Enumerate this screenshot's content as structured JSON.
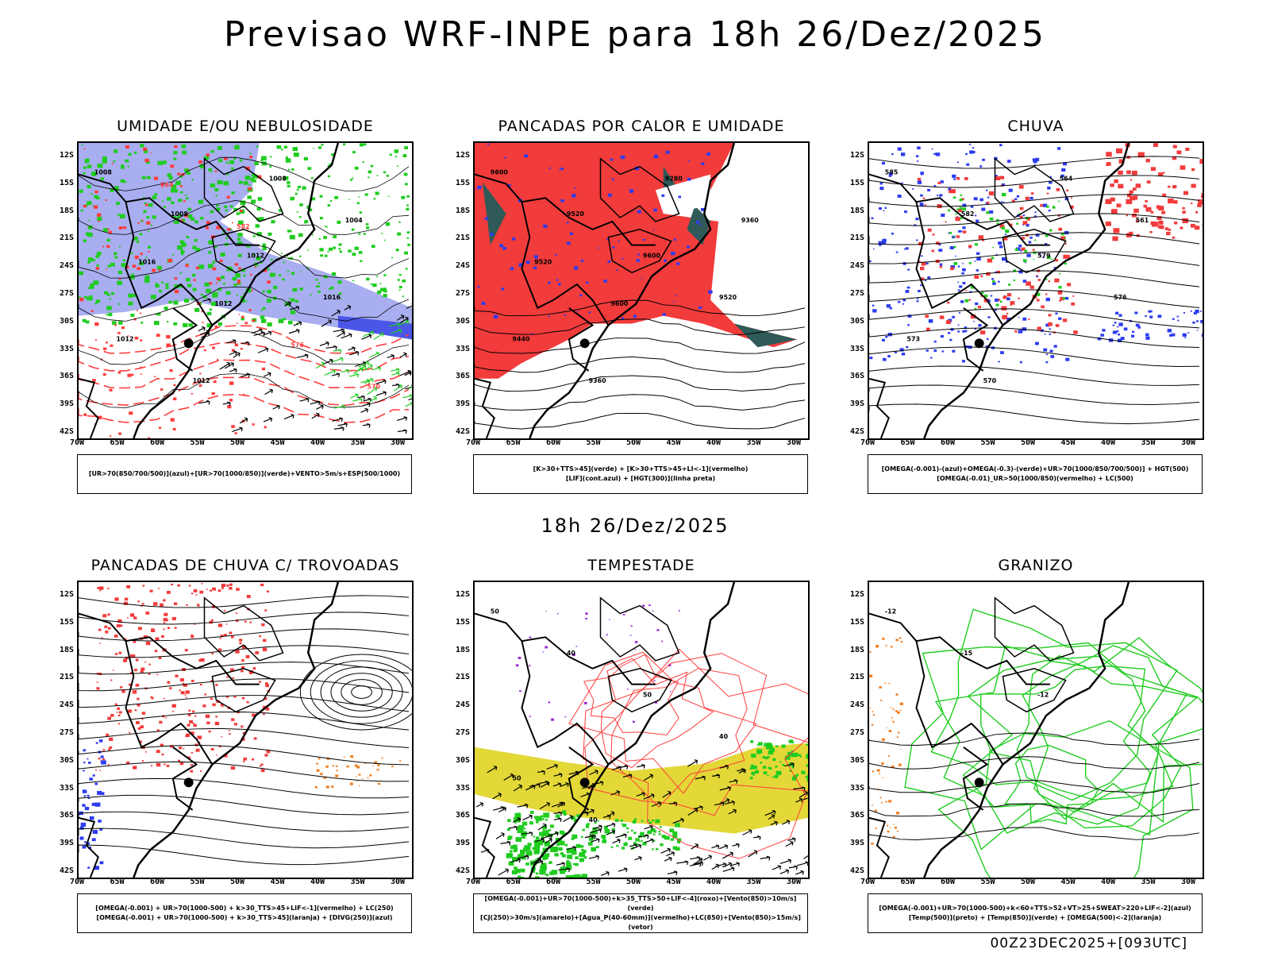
{
  "main_title": "Previsao WRF-INPE  para 18h 26/Dez/2025",
  "mid_title": "18h 26/Dez/2025",
  "footer": "00Z23DEC2025+[093UTC]",
  "axes": {
    "lat_labels": [
      "12S",
      "15S",
      "18S",
      "21S",
      "24S",
      "27S",
      "30S",
      "33S",
      "36S",
      "39S",
      "42S"
    ],
    "lon_labels": [
      "70W",
      "65W",
      "60W",
      "55W",
      "50W",
      "45W",
      "40W",
      "35W",
      "30W"
    ]
  },
  "colors": {
    "blue_shade": "#a9aef0",
    "green_contour": "#1fcc1f",
    "red_contour": "#ff3b3b",
    "red_shade": "#f23b3b",
    "dark_teal": "#2f5a57",
    "blue_contour": "#2c3cf0",
    "yellow_shade": "#e3d838",
    "orange": "#ef7f23",
    "purple": "#9b2bd6"
  },
  "panels": [
    {
      "id": "umidade",
      "title": "UMIDADE E/OU NEBULOSIDADE",
      "legend": [
        "[UR>70(850/700/500)](azul)+[UR>70(1000/850)](verde)+VENTO>5m/s+ESP(500/1000)"
      ],
      "contour_labels": [
        "1008",
        "1008",
        "1012",
        "1016",
        "1012",
        "1012",
        "1008",
        "1004",
        "1016",
        "1012",
        "576",
        "570",
        "564",
        "582"
      ]
    },
    {
      "id": "pancadas",
      "title": "PANCADAS POR CALOR E UMIDADE",
      "legend": [
        "[K>30+TTS>45](verde) + [K>30+TTS>45+LI<-1](vermelho)",
        "[LIF](cont.azul) + [HGT(300)](linha preta)"
      ],
      "contour_labels": [
        "9600",
        "9520",
        "9600",
        "9520",
        "9440",
        "9360",
        "9280",
        "9360",
        "9520",
        "9600"
      ]
    },
    {
      "id": "chuva",
      "title": "CHUVA",
      "legend": [
        "[OMEGA(-0.001)-(azul)+OMEGA(-0.3)-(verde)+UR>70(1000/850/700/500)] + HGT(500)",
        "[OMEGA(-0.01)_UR>50(1000/850)(vermelho) + LC(500)"
      ],
      "contour_labels": [
        "585",
        "582",
        "579",
        "576",
        "573",
        "570",
        "564",
        "561"
      ]
    },
    {
      "id": "trovoadas",
      "title": "PANCADAS DE CHUVA C/ TROVOADAS",
      "legend": [
        "[OMEGA(-0.001) + UR>70(1000-500) + k>30_TTS>45+LIF<-1](vermelho) + LC(250)",
        "[OMEGA(-0.001) + UR>70(1000-500) + k>30_TTS>45](laranja) + [DIVG(250)](azul)"
      ],
      "contour_labels": []
    },
    {
      "id": "tempestade",
      "title": "TEMPESTADE",
      "legend": [
        "[OMEGA(-0.001)+UR>70(1000-500)+k>35_TTS>50+LIF<-4](roxo)+[Vento(850)>10m/s](verde)",
        "[CJ(250)>30m/s](amarelo)+[Agua_P(40-60mm)](vermelho)+LC(850)+[Vento(850)>15m/s](vetor)"
      ],
      "contour_labels": [
        "50",
        "40",
        "50",
        "40",
        "50",
        "40"
      ]
    },
    {
      "id": "granizo",
      "title": "GRANIZO",
      "legend": [
        "[OMEGA(-0.001)+UR>70(1000-500)+k<60+TTS>52+VT>25+SWEAT>220+LIF<-2](azul)",
        "[Temp(500)](preto) + [Temp(850)](verde) + [OMEGA(500)<-2](laranja)"
      ],
      "contour_labels": [
        "-12",
        "-15",
        "-12"
      ]
    }
  ]
}
